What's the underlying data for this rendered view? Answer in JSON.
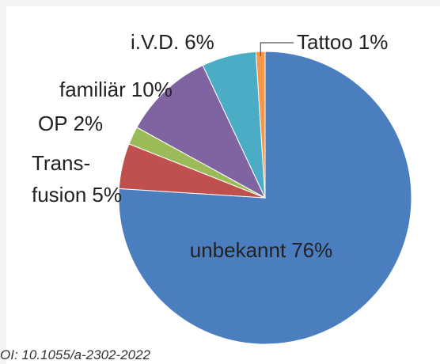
{
  "chart_data": {
    "type": "pie",
    "categories": [
      "unbekannt",
      "Trans-\nfusion",
      "OP",
      "familiär",
      "i.V.D.",
      "Tattoo"
    ],
    "values": [
      76,
      5,
      2,
      10,
      6,
      1
    ],
    "value_labels": [
      "76%",
      "5%",
      "2%",
      "10%",
      "6%",
      "1%"
    ],
    "colors": [
      "#4a7ebf",
      "#c0504d",
      "#9bbb59",
      "#8064a2",
      "#4bacc6",
      "#f79646"
    ],
    "caption": "OI: 10.1055/a-2302-2022"
  }
}
